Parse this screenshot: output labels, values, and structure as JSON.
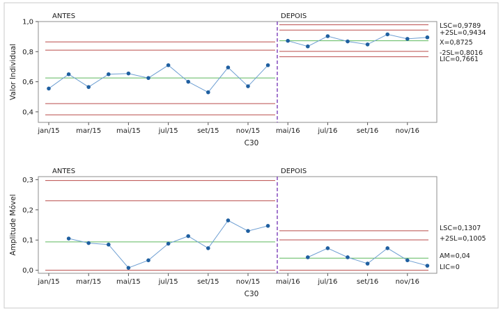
{
  "chart_data": [
    {
      "type": "line",
      "title": "",
      "phase_labels": [
        "ANTES",
        "DEPOIS"
      ],
      "ylabel": "Valor Individual",
      "xlabel": "C30",
      "ylim": [
        0.33,
        1.0
      ],
      "yticks": [
        "0,4",
        "0,6",
        "0,8",
        "1,0"
      ],
      "ytick_values": [
        0.4,
        0.6,
        0.8,
        1.0
      ],
      "xticks": [
        "jan/15",
        "mar/15",
        "mai/15",
        "jul/15",
        "set/15",
        "nov/15",
        "mai/16",
        "jul/16",
        "set/16",
        "nov/16"
      ],
      "xtick_index": [
        0,
        2,
        4,
        6,
        8,
        10,
        12,
        14,
        16,
        18
      ],
      "phases": [
        {
          "name": "ANTES",
          "x": [
            0,
            1,
            2,
            3,
            4,
            5,
            6,
            7,
            8,
            9,
            10,
            11
          ],
          "values": [
            0.555,
            0.65,
            0.565,
            0.65,
            0.655,
            0.625,
            0.71,
            0.6,
            0.53,
            0.695,
            0.57,
            0.71
          ],
          "center": 0.625,
          "lines": [
            0.865,
            0.81,
            0.625,
            0.455,
            0.38
          ]
        },
        {
          "name": "DEPOIS",
          "x": [
            12,
            13,
            14,
            15,
            16,
            17,
            18,
            19
          ],
          "values": [
            0.872,
            0.835,
            0.903,
            0.868,
            0.848,
            0.915,
            0.885,
            0.895
          ],
          "center": 0.8725,
          "lines": [
            0.9789,
            0.9434,
            0.8725,
            0.8016,
            0.7661
          ]
        }
      ],
      "annotations": [
        "LSC=0,9789",
        "+2SL=0,9434",
        "X=0,8725",
        "-2SL=0,8016",
        "LIC=0,7661"
      ],
      "colors": {
        "data": "#1f5fa0",
        "center": "#5cb85c",
        "limit": "#b94a48",
        "phase_divider": "#7a3db8"
      },
      "grid": false
    },
    {
      "type": "line",
      "title": "",
      "phase_labels": [
        "ANTES",
        "DEPOIS"
      ],
      "ylabel": "Amplitude Móvel",
      "xlabel": "C30",
      "ylim": [
        -0.01,
        0.31
      ],
      "yticks": [
        "0,0",
        "0,1",
        "0,2",
        "0,3"
      ],
      "ytick_values": [
        0.0,
        0.1,
        0.2,
        0.3
      ],
      "xticks": [
        "jan/15",
        "mar/15",
        "mai/15",
        "jul/15",
        "set/15",
        "nov/15",
        "mai/16",
        "jul/16",
        "set/16",
        "nov/16"
      ],
      "xtick_index": [
        0,
        2,
        4,
        6,
        8,
        10,
        12,
        14,
        16,
        18
      ],
      "phases": [
        {
          "name": "ANTES",
          "x": [
            1,
            2,
            3,
            4,
            5,
            6,
            7,
            8,
            9,
            10,
            11
          ],
          "values": [
            0.105,
            0.09,
            0.085,
            0.008,
            0.033,
            0.088,
            0.113,
            0.073,
            0.165,
            0.13,
            0.147
          ],
          "center": 0.094,
          "lines": [
            0.297,
            0.23,
            0.094,
            0.0
          ]
        },
        {
          "name": "DEPOIS",
          "x": [
            13,
            14,
            15,
            16,
            17,
            18,
            19
          ],
          "values": [
            0.043,
            0.073,
            0.043,
            0.022,
            0.073,
            0.033,
            0.015
          ],
          "center": 0.04,
          "lines": [
            0.1307,
            0.1005,
            0.04,
            0.0
          ]
        }
      ],
      "annotations": [
        "LSC=0,1307",
        "+2SL=0,1005",
        "AM=0,04",
        "LIC=0"
      ],
      "colors": {
        "data": "#1f5fa0",
        "center": "#5cb85c",
        "limit": "#b94a48",
        "phase_divider": "#7a3db8"
      },
      "grid": false
    }
  ]
}
